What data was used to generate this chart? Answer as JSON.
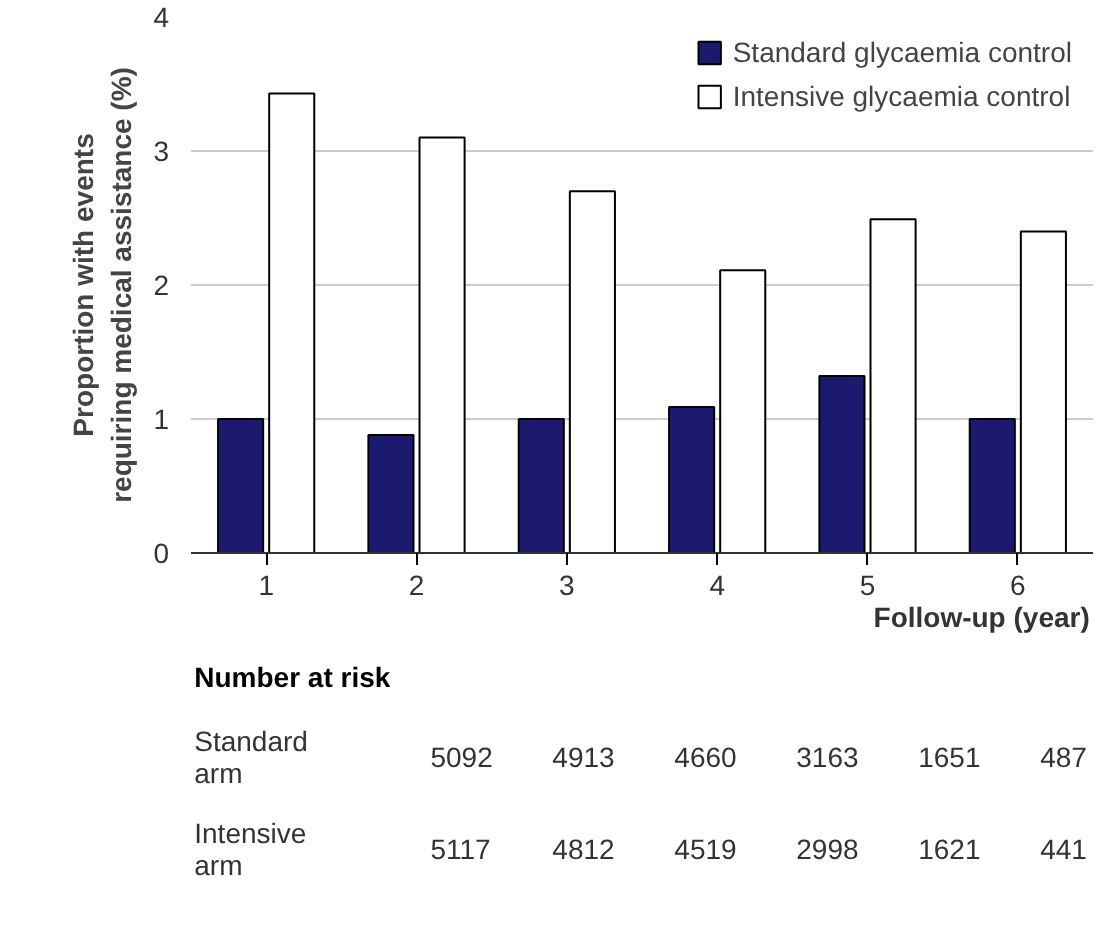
{
  "chart_data": {
    "type": "bar",
    "categories": [
      "1",
      "2",
      "3",
      "4",
      "5",
      "6"
    ],
    "series": [
      {
        "name": "Standard glycaemia control",
        "color": "#1c1a6e",
        "values": [
          1.0,
          0.88,
          1.0,
          1.09,
          1.32,
          1.0
        ]
      },
      {
        "name": "Intensive glycaemia control",
        "color": "#ffffff",
        "values": [
          3.43,
          3.1,
          2.7,
          2.11,
          2.49,
          2.4
        ]
      }
    ],
    "ylim": [
      0,
      4
    ],
    "yticks": [
      0,
      1,
      2,
      3,
      4
    ],
    "grid": "y",
    "legend": "top right",
    "ylabel": "Proportion with events\nrequiring medical assistance (%)",
    "xlabel": "Follow-up (year)",
    "annotations": [
      "Number at risk",
      "Standard\narm",
      "5092",
      "4913",
      "4660",
      "3163",
      "1651",
      "487",
      "Intensive\narm",
      "5117",
      "4812",
      "4519",
      "2998",
      "1621",
      "441"
    ]
  }
}
